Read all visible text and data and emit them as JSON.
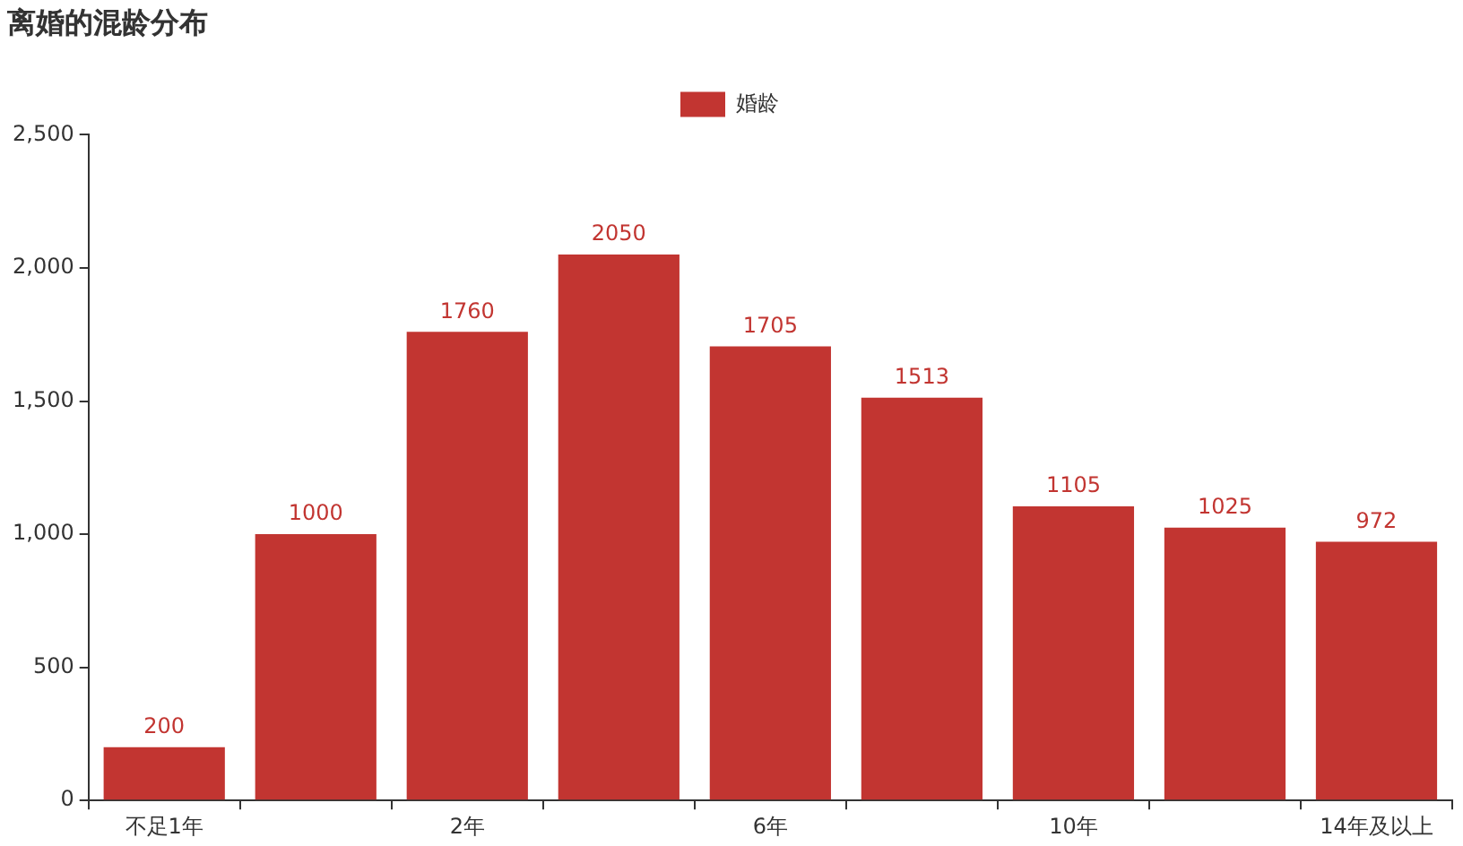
{
  "chart_data": {
    "type": "bar",
    "title": "离婚的混龄分布",
    "categories": [
      "不足1年",
      null,
      "2年",
      null,
      "6年",
      null,
      "10年",
      null,
      "14年及以上"
    ],
    "series": [
      {
        "name": "婚龄",
        "color": "#c23531",
        "values": [
          200,
          1000,
          1760,
          2050,
          1705,
          1513,
          1105,
          1025,
          972
        ]
      }
    ],
    "ylim": [
      0,
      2500
    ],
    "yticks": [
      {
        "value": 0,
        "label": "0"
      },
      {
        "value": 500,
        "label": "500"
      },
      {
        "value": 1000,
        "label": "1,000"
      },
      {
        "value": 1500,
        "label": "1,500"
      },
      {
        "value": 2000,
        "label": "2,000"
      },
      {
        "value": 2500,
        "label": "2,500"
      }
    ],
    "grid": false,
    "legend": "top",
    "data_labels": true
  }
}
